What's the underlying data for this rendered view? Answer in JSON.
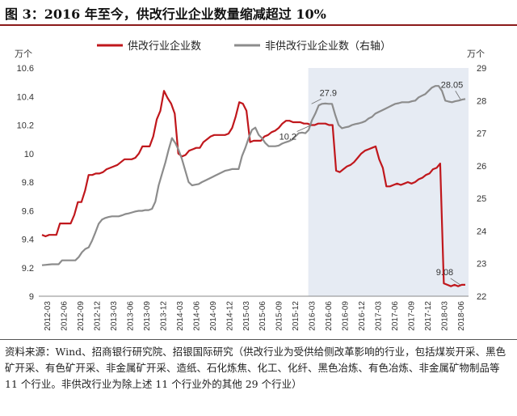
{
  "title": "图 3：2016 年至今，供改行业企业数量缩减超过 10%",
  "source": "资料来源：Wind、招商银行研究院、招银国际研究（供改行业为受供给侧改革影响的行业，包括煤炭开采、黑色矿开采、有色矿开采、非金属矿开采、造纸、石化炼焦、化工、化纤、黑色冶炼、有色冶炼、非金属矿物制品等 11 个行业。非供改行业为除上述 11 个行业外的其他 29 个行业）",
  "colors": {
    "series1": "#c0171c",
    "series2": "#8c8c8c",
    "shade": "#e6ebf3"
  },
  "chart_data": {
    "type": "line",
    "left_unit": "万个",
    "right_unit": "万个",
    "yleft_lim": [
      9,
      10.6
    ],
    "yleft_ticks": [
      "9",
      "9.2",
      "9.4",
      "9.6",
      "9.8",
      "10",
      "10.2",
      "10.4",
      "10.6"
    ],
    "yright_lim": [
      22,
      29
    ],
    "yright_ticks": [
      "22",
      "23",
      "24",
      "25",
      "26",
      "27",
      "28",
      "29"
    ],
    "x_tick_labels": [
      "2012-03",
      "2012-06",
      "2012-09",
      "2012-12",
      "2013-03",
      "2013-06",
      "2013-09",
      "2013-12",
      "2014-03",
      "2014-06",
      "2014-09",
      "2014-12",
      "2015-03",
      "2015-06",
      "2015-09",
      "2015-12",
      "2016-03",
      "2016-06",
      "2016-09",
      "2016-12",
      "2017-03",
      "2017-06",
      "2017-09",
      "2017-12",
      "2018-03",
      "2018-06"
    ],
    "shaded_from": "2016-03",
    "series": [
      {
        "name": "供改行业企业数",
        "axis": "left",
        "values": [
          9.43,
          9.42,
          9.43,
          9.43,
          9.43,
          9.51,
          9.51,
          9.51,
          9.51,
          9.57,
          9.66,
          9.66,
          9.74,
          9.85,
          9.85,
          9.86,
          9.86,
          9.87,
          9.89,
          9.9,
          9.91,
          9.92,
          9.94,
          9.96,
          9.96,
          9.96,
          9.97,
          10.0,
          10.05,
          10.05,
          10.05,
          10.12,
          10.24,
          10.3,
          10.44,
          10.39,
          10.35,
          10.28,
          10.0,
          9.98,
          9.99,
          10.02,
          10.03,
          10.04,
          10.04,
          10.08,
          10.1,
          10.12,
          10.13,
          10.13,
          10.13,
          10.13,
          10.14,
          10.18,
          10.26,
          10.36,
          10.35,
          10.3,
          10.08,
          10.09,
          10.09,
          10.09,
          10.12,
          10.13,
          10.15,
          10.16,
          10.18,
          10.21,
          10.23,
          10.23,
          10.22,
          10.22,
          10.22,
          10.21,
          10.21,
          10.2,
          10.2,
          10.21,
          10.21,
          10.21,
          10.2,
          10.2,
          9.88,
          9.87,
          9.89,
          9.91,
          9.92,
          9.94,
          9.97,
          10.0,
          10.02,
          10.03,
          10.04,
          10.05,
          9.96,
          9.9,
          9.77,
          9.77,
          9.78,
          9.79,
          9.78,
          9.79,
          9.8,
          9.79,
          9.8,
          9.82,
          9.83,
          9.85,
          9.86,
          9.89,
          9.9,
          9.93,
          9.09,
          9.08,
          9.07,
          9.08,
          9.07,
          9.08,
          9.08
        ]
      },
      {
        "name": "非供改行业企业数（右轴）",
        "axis": "right",
        "values": [
          22.95,
          22.96,
          22.97,
          22.98,
          22.98,
          22.98,
          23.1,
          23.1,
          23.1,
          23.1,
          23.1,
          23.2,
          23.35,
          23.45,
          23.5,
          23.7,
          23.95,
          24.22,
          24.35,
          24.4,
          24.43,
          24.45,
          24.45,
          24.45,
          24.48,
          24.52,
          24.54,
          24.57,
          24.6,
          24.62,
          24.62,
          24.64,
          24.64,
          24.68,
          24.9,
          25.4,
          25.75,
          26.1,
          26.5,
          26.85,
          26.7,
          26.48,
          26.2,
          25.85,
          25.5,
          25.4,
          25.42,
          25.44,
          25.5,
          25.55,
          25.6,
          25.65,
          25.7,
          25.75,
          25.8,
          25.85,
          25.87,
          25.9,
          25.9,
          25.9,
          26.3,
          26.55,
          26.85,
          27.1,
          27.17,
          26.95,
          26.85,
          26.7,
          26.6,
          26.6,
          26.6,
          26.62,
          26.68,
          26.72,
          26.75,
          26.8,
          26.9,
          27.0,
          27.02,
          27.0,
          27.1,
          27.4,
          27.6,
          27.85,
          27.9,
          27.91,
          27.9,
          27.9,
          27.55,
          27.25,
          27.15,
          27.18,
          27.2,
          27.25,
          27.28,
          27.3,
          27.33,
          27.37,
          27.45,
          27.5,
          27.6,
          27.65,
          27.7,
          27.75,
          27.8,
          27.85,
          27.9,
          27.92,
          27.95,
          27.95,
          27.95,
          27.98,
          28.0,
          28.1,
          28.15,
          28.2,
          28.3,
          28.4,
          28.45,
          28.45,
          28.3,
          28.0,
          27.97,
          27.95,
          27.98,
          28.0,
          28.03,
          28.05
        ]
      }
    ],
    "annotations": [
      {
        "text": "27.9",
        "series": 1,
        "at": "2016-03",
        "axis": "right",
        "value": 27.9
      },
      {
        "text": "10.2",
        "series": 0,
        "at": "2016-03",
        "axis": "left",
        "value": 10.2
      },
      {
        "text": "28.05",
        "series": 1,
        "at": "2018-06",
        "axis": "right",
        "value": 28.05
      },
      {
        "text": "9.08",
        "series": 0,
        "at": "2018-06",
        "axis": "left",
        "value": 9.08
      }
    ],
    "legend": "top-center",
    "grid": false
  }
}
